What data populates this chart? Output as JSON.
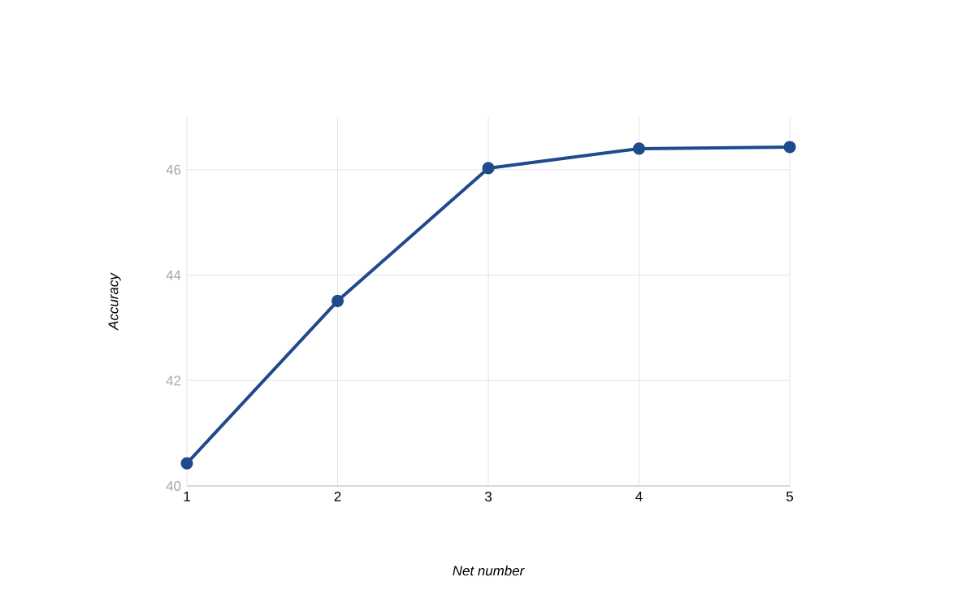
{
  "chart_data": {
    "type": "line",
    "xlabel": "Net number",
    "ylabel": "Accuracy",
    "x": [
      1,
      2,
      3,
      4,
      5
    ],
    "series": [
      {
        "color": "#1f4a8c",
        "values": [
          40.43,
          43.51,
          46.03,
          46.4,
          46.43
        ]
      }
    ],
    "xlim": [
      1,
      5
    ],
    "xticks": [
      1,
      2,
      3,
      4,
      5
    ],
    "ylim": [
      40,
      47
    ],
    "yticks": [
      40,
      42,
      44,
      46
    ],
    "grid": true,
    "marker": "circle",
    "line_style": "solid"
  }
}
